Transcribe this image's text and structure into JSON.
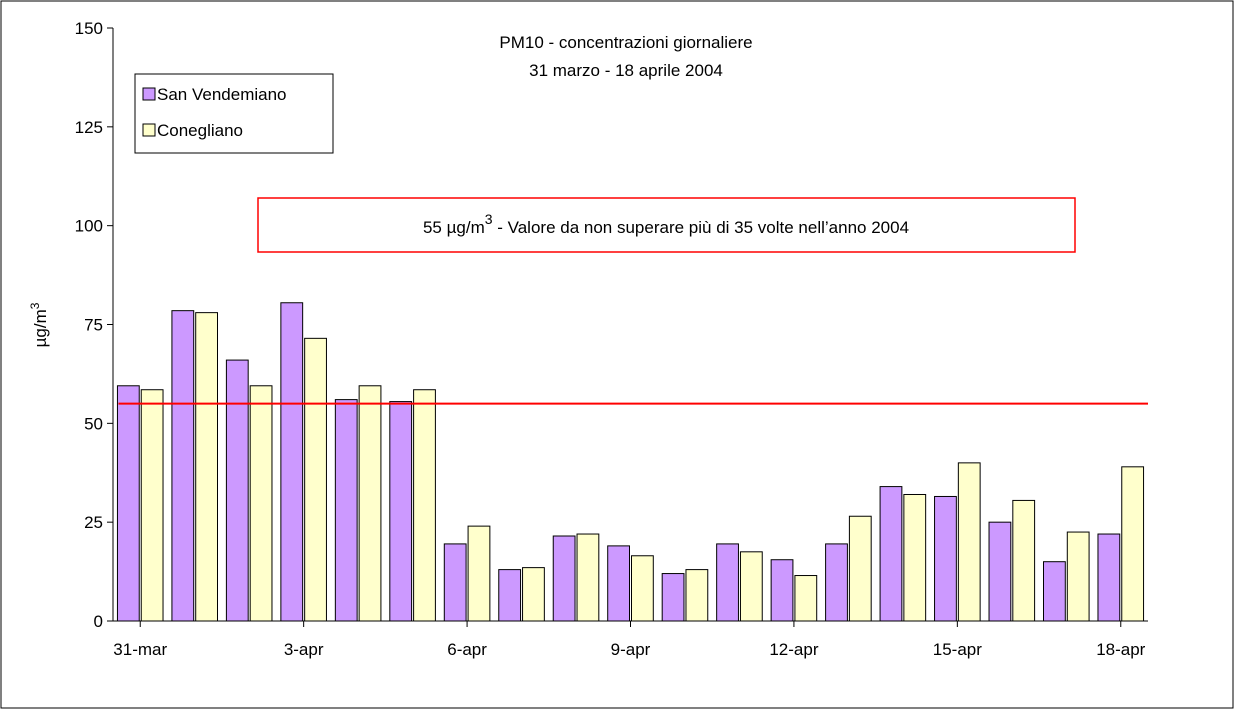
{
  "chart_data": {
    "type": "bar",
    "title": [
      "PM10 - concentrazioni giornaliere",
      "31 marzo - 18 aprile 2004"
    ],
    "y_label": {
      "text": "µg/m",
      "sup": "3"
    },
    "categories": [
      "31-mar",
      null,
      null,
      "3-apr",
      null,
      null,
      "6-apr",
      null,
      null,
      "9-apr",
      null,
      null,
      "12-apr",
      null,
      null,
      "15-apr",
      null,
      null,
      "18-apr"
    ],
    "series": [
      {
        "name": "San Vendemiano",
        "color": "#cc99ff",
        "values": [
          59.5,
          78.5,
          66,
          80.5,
          56,
          55.5,
          19.5,
          13,
          21.5,
          19,
          12,
          19.5,
          15.5,
          19.5,
          34,
          31.5,
          25,
          15,
          22
        ]
      },
      {
        "name": "Conegliano",
        "color": "#ffffcc",
        "values": [
          58.5,
          78,
          59.5,
          71.5,
          59.5,
          58.5,
          24,
          13.5,
          22,
          16.5,
          13,
          17.5,
          11.5,
          26.5,
          32,
          40,
          30.5,
          22.5,
          39
        ]
      }
    ],
    "threshold": {
      "value": 55,
      "color": "#ff0000"
    },
    "annotation": {
      "prefix": "55 µg/m",
      "sup": "3",
      "suffix": " - Valore da non superare più di 35 volte nell’anno 2004",
      "color": "#ff0000"
    },
    "ylim": [
      0,
      150
    ],
    "yticks": [
      0,
      25,
      50,
      75,
      100,
      125,
      150
    ],
    "grid": false,
    "legend": "top-left"
  }
}
